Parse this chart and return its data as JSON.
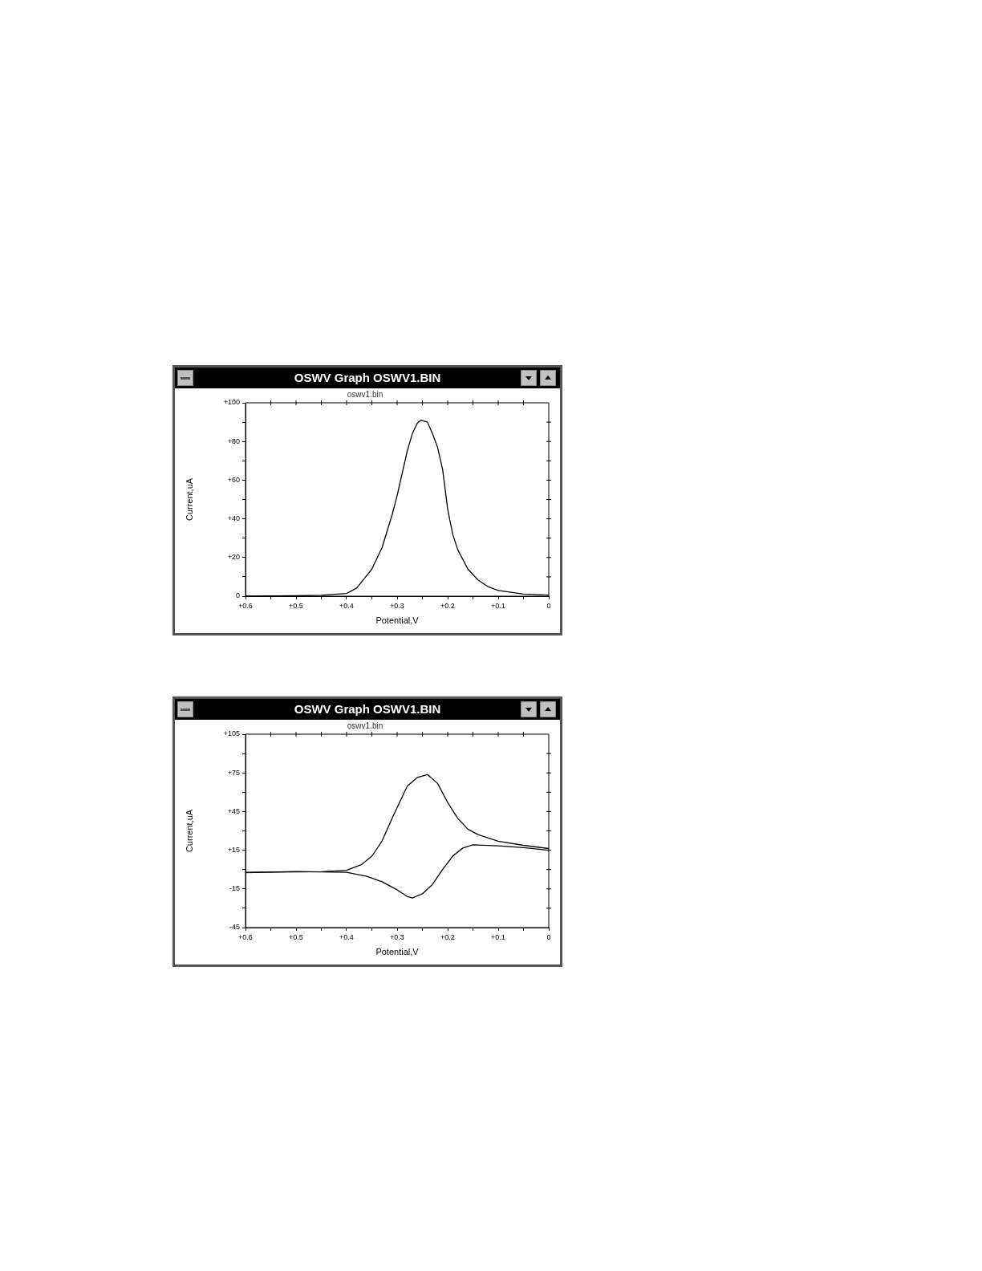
{
  "chart_data": [
    {
      "type": "line",
      "title": "OSWV Graph OSWV1.BIN",
      "subtitle": "oswv1.bin",
      "xlabel": "Potential,V",
      "ylabel": "Current,uA",
      "xlim": [
        0.6,
        0
      ],
      "ylim": [
        0,
        100
      ],
      "xticks": [
        {
          "value": 0.6,
          "label": "+0.6"
        },
        {
          "value": 0.55,
          "label": null
        },
        {
          "value": 0.5,
          "label": "+0.5"
        },
        {
          "value": 0.45,
          "label": null
        },
        {
          "value": 0.4,
          "label": "+0.4"
        },
        {
          "value": 0.35,
          "label": null
        },
        {
          "value": 0.3,
          "label": "+0.3"
        },
        {
          "value": 0.25,
          "label": null
        },
        {
          "value": 0.2,
          "label": "+0.2"
        },
        {
          "value": 0.15,
          "label": null
        },
        {
          "value": 0.1,
          "label": "+0.1"
        },
        {
          "value": 0.05,
          "label": null
        },
        0
      ],
      "yticks": [
        0,
        {
          "value": 10,
          "label": null
        },
        {
          "value": 20,
          "label": "+20"
        },
        {
          "value": 30,
          "label": null
        },
        {
          "value": 40,
          "label": "+40"
        },
        {
          "value": 50,
          "label": null
        },
        {
          "value": 60,
          "label": "+60"
        },
        {
          "value": 70,
          "label": null
        },
        {
          "value": 80,
          "label": "+80"
        },
        {
          "value": 90,
          "label": null
        },
        {
          "value": 100,
          "label": "+100"
        }
      ],
      "grid": false,
      "legend": false,
      "marker": "none",
      "line_style": "solid",
      "series": [
        {
          "color": "#000000",
          "x": [
            0.6,
            0.5,
            0.45,
            0.4,
            0.38,
            0.35,
            0.33,
            0.31,
            0.3,
            0.28,
            0.27,
            0.26,
            0.253,
            0.24,
            0.23,
            0.22,
            0.21,
            0.2,
            0.19,
            0.18,
            0.16,
            0.14,
            0.12,
            0.1,
            0.05,
            0
          ],
          "values": [
            0,
            0.2,
            0.5,
            1.4,
            4.2,
            14,
            25,
            42,
            52,
            75,
            84,
            89.5,
            91,
            90,
            84,
            77,
            65.5,
            45,
            32,
            24,
            14,
            8.4,
            4.9,
            3,
            1.1,
            0.6
          ]
        }
      ]
    },
    {
      "type": "line",
      "title": "OSWV Graph OSWV1.BIN",
      "subtitle": "oswv1.bin",
      "xlabel": "Potential,V",
      "ylabel": "Current,uA",
      "xlim": [
        0.6,
        0
      ],
      "ylim": [
        -45,
        105
      ],
      "xticks": [
        {
          "value": 0.6,
          "label": "+0.6"
        },
        {
          "value": 0.55,
          "label": null
        },
        {
          "value": 0.5,
          "label": "+0.5"
        },
        {
          "value": 0.45,
          "label": null
        },
        {
          "value": 0.4,
          "label": "+0.4"
        },
        {
          "value": 0.35,
          "label": null
        },
        {
          "value": 0.3,
          "label": "+0.3"
        },
        {
          "value": 0.25,
          "label": null
        },
        {
          "value": 0.2,
          "label": "+0.2"
        },
        {
          "value": 0.15,
          "label": null
        },
        {
          "value": 0.1,
          "label": "+0.1"
        },
        {
          "value": 0.05,
          "label": null
        },
        0
      ],
      "yticks": [
        -45,
        {
          "value": -30,
          "label": null
        },
        -15,
        {
          "value": 0,
          "label": null
        },
        {
          "value": 15,
          "label": "+15"
        },
        {
          "value": 30,
          "label": null
        },
        {
          "value": 45,
          "label": "+45"
        },
        {
          "value": 60,
          "label": null
        },
        {
          "value": 75,
          "label": "+75"
        },
        {
          "value": 90,
          "label": null
        },
        {
          "value": 105,
          "label": "+105"
        }
      ],
      "grid": false,
      "legend": false,
      "marker": "none",
      "line_style": "solid",
      "series": [
        {
          "color": "#000000",
          "x": [
            0.6,
            0.5,
            0.45,
            0.4,
            0.37,
            0.35,
            0.33,
            0.31,
            0.3,
            0.28,
            0.26,
            0.24,
            0.22,
            0.2,
            0.18,
            0.16,
            0.14,
            0.1,
            0.05,
            0
          ],
          "values": [
            -2.1,
            -1.8,
            -1.7,
            -0.6,
            4,
            10.4,
            22,
            39.7,
            48,
            64.7,
            71.4,
            73.7,
            66.8,
            52,
            39.7,
            31.3,
            27.1,
            22,
            18.8,
            16.3
          ]
        },
        {
          "color": "#000000",
          "x": [
            0.6,
            0.5,
            0.4,
            0.36,
            0.33,
            0.3,
            0.28,
            0.27,
            0.25,
            0.23,
            0.21,
            0.19,
            0.17,
            0.15,
            0.1,
            0.05,
            0
          ],
          "values": [
            -2.5,
            -1.5,
            -2.1,
            -5.2,
            -9.4,
            -15.7,
            -20.9,
            -22.1,
            -18.8,
            -11.5,
            0,
            10.4,
            16.7,
            19.2,
            18.4,
            17,
            15
          ]
        }
      ]
    }
  ]
}
